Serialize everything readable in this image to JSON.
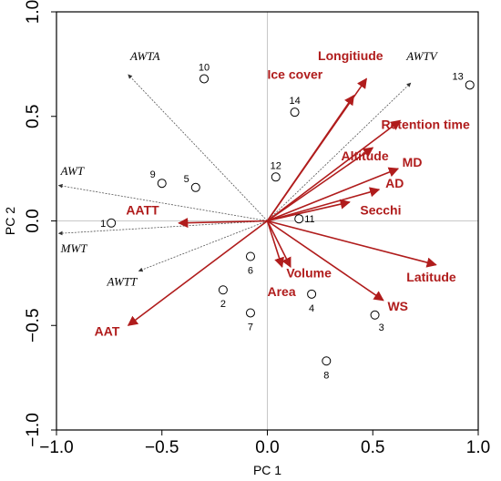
{
  "chart_data": {
    "type": "scatter",
    "subtype": "pca-biplot",
    "xlabel": "PC 1",
    "ylabel": "PC 2",
    "xlim": [
      -1.0,
      1.0
    ],
    "ylim": [
      -1.0,
      1.0
    ],
    "xticks": [
      "−1.0",
      "−0.5",
      "0.0",
      "0.5",
      "1.0"
    ],
    "yticks": [
      "−1.0",
      "−0.5",
      "0.0",
      "0.5",
      "1.0"
    ],
    "xtick_values": [
      -1.0,
      -0.5,
      0.0,
      0.5,
      1.0
    ],
    "ytick_values": [
      -1.0,
      -0.5,
      0.0,
      0.5,
      1.0
    ],
    "reference_lines": {
      "x": 0,
      "y": 0
    },
    "vector_color": "#b01c1c",
    "supplementary_color": "#555555",
    "vectors": [
      {
        "name": "Longitiude",
        "x": 0.47,
        "y": 0.68,
        "lx": 0.24,
        "ly": 0.77
      },
      {
        "name": "Ice cover",
        "x": 0.41,
        "y": 0.6,
        "lx": 0.0,
        "ly": 0.68
      },
      {
        "name": "Retention time",
        "x": 0.63,
        "y": 0.48,
        "lx": 0.54,
        "ly": 0.44
      },
      {
        "name": "Altitude",
        "x": 0.5,
        "y": 0.35,
        "lx": 0.35,
        "ly": 0.29
      },
      {
        "name": "MD",
        "x": 0.62,
        "y": 0.25,
        "lx": 0.64,
        "ly": 0.26
      },
      {
        "name": "AD",
        "x": 0.53,
        "y": 0.15,
        "lx": 0.56,
        "ly": 0.16
      },
      {
        "name": "Secchi",
        "x": 0.39,
        "y": 0.09,
        "lx": 0.44,
        "ly": 0.03
      },
      {
        "name": "AATT",
        "x": -0.42,
        "y": -0.01,
        "lx": -0.67,
        "ly": 0.03
      },
      {
        "name": "Latitude",
        "x": 0.8,
        "y": -0.21,
        "lx": 0.66,
        "ly": -0.29
      },
      {
        "name": "Volume",
        "x": 0.11,
        "y": -0.22,
        "lx": 0.09,
        "ly": -0.27
      },
      {
        "name": "Area",
        "x": 0.07,
        "y": -0.22,
        "lx": 0.0,
        "ly": -0.36
      },
      {
        "name": "WS",
        "x": 0.55,
        "y": -0.38,
        "lx": 0.57,
        "ly": -0.43
      },
      {
        "name": "AAT",
        "x": -0.66,
        "y": -0.5,
        "lx": -0.82,
        "ly": -0.55
      }
    ],
    "supplementary": [
      {
        "name": "AWTA",
        "x": -0.66,
        "y": 0.7,
        "lx": -0.65,
        "ly": 0.77
      },
      {
        "name": "AWTV",
        "x": 0.68,
        "y": 0.66,
        "lx": 0.66,
        "ly": 0.77
      },
      {
        "name": "AWT",
        "x": -0.99,
        "y": 0.17,
        "lx": -0.98,
        "ly": 0.22
      },
      {
        "name": "MWT",
        "x": -0.99,
        "y": -0.06,
        "lx": -0.98,
        "ly": -0.15
      },
      {
        "name": "AWTT",
        "x": -0.61,
        "y": -0.24,
        "lx": -0.76,
        "ly": -0.31
      }
    ],
    "sites": [
      {
        "label": "1",
        "x": -0.74,
        "y": -0.01,
        "pos": "left"
      },
      {
        "label": "2",
        "x": -0.21,
        "y": -0.33,
        "pos": "below"
      },
      {
        "label": "3",
        "x": 0.51,
        "y": -0.45,
        "pos": "below-right"
      },
      {
        "label": "4",
        "x": 0.21,
        "y": -0.35,
        "pos": "below"
      },
      {
        "label": "5",
        "x": -0.34,
        "y": 0.16,
        "pos": "above-left"
      },
      {
        "label": "6",
        "x": -0.08,
        "y": -0.17,
        "pos": "below"
      },
      {
        "label": "7",
        "x": -0.08,
        "y": -0.44,
        "pos": "below"
      },
      {
        "label": "8",
        "x": 0.28,
        "y": -0.67,
        "pos": "below"
      },
      {
        "label": "9",
        "x": -0.5,
        "y": 0.18,
        "pos": "above-left"
      },
      {
        "label": "10",
        "x": -0.3,
        "y": 0.68,
        "pos": "above"
      },
      {
        "label": "11",
        "x": 0.15,
        "y": 0.01,
        "pos": "right"
      },
      {
        "label": "12",
        "x": 0.04,
        "y": 0.21,
        "pos": "above"
      },
      {
        "label": "13",
        "x": 0.96,
        "y": 0.65,
        "pos": "above-left"
      },
      {
        "label": "14",
        "x": 0.13,
        "y": 0.52,
        "pos": "above"
      }
    ]
  }
}
